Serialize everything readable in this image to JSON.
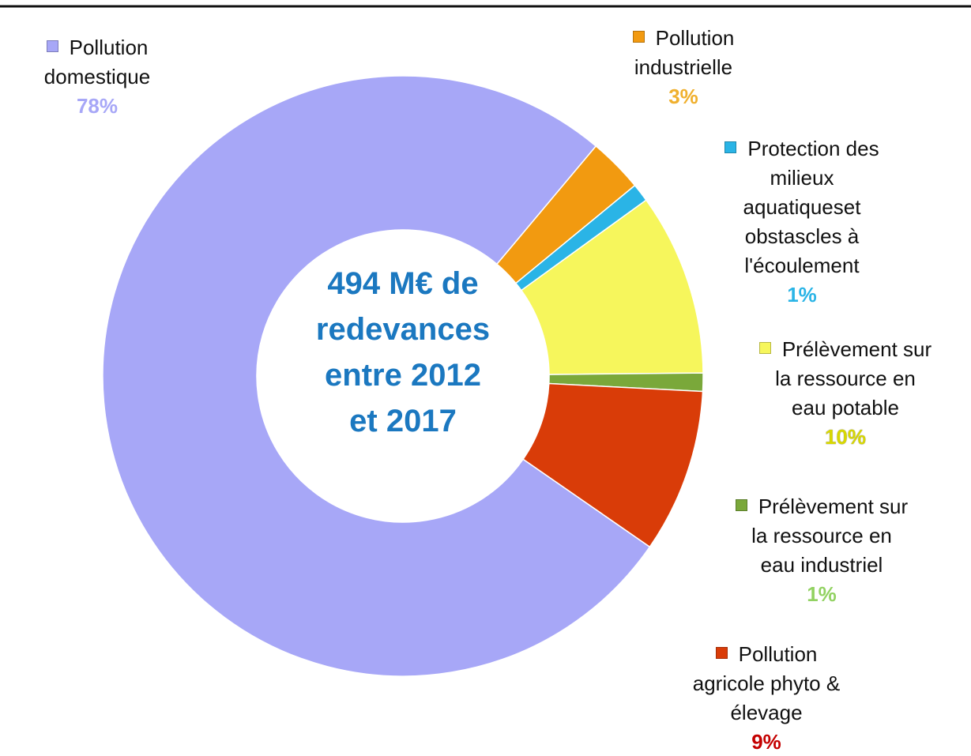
{
  "chart_data": {
    "type": "donut",
    "center_text": "494 M€ de\nredevances\nentre 2012\net 2017",
    "categories": [
      "Pollution\ndomestique",
      "Pollution\nindustrielle",
      "Protection des\nmilieux\naquatiqueset\nobstascles à\nl'écoulement",
      "Prélèvement sur\nla ressource en\neau potable",
      "Prélèvement sur\nla ressource en\neau industriel",
      "Pollution\nagricole phyto &\nélevage"
    ],
    "values": [
      78,
      3,
      1,
      10,
      1,
      9
    ],
    "value_labels": [
      "78%",
      "3%",
      "1%",
      "10%",
      "1%",
      "9%"
    ],
    "colors": [
      "#a7a7f7",
      "#f29a10",
      "#2ab4e6",
      "#f6f65c",
      "#7aa83a",
      "#d93c08"
    ],
    "label_colors": [
      "#a7a7f7",
      "#f0b02e",
      "#2ab4e6",
      "#d8d800",
      "#92d262",
      "#c40000"
    ]
  }
}
